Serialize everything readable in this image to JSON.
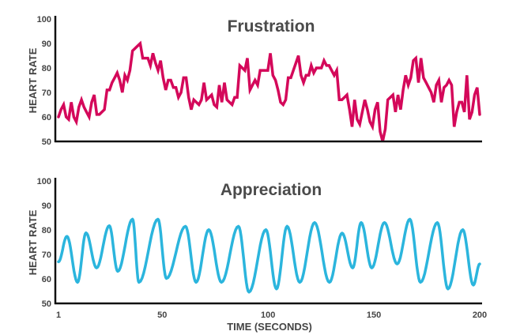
{
  "chart_data": [
    {
      "type": "line",
      "title": "Frustration",
      "ylabel": "HEART RATE",
      "xlabel": "",
      "ylim": [
        50,
        100
      ],
      "xlim": [
        1,
        200
      ],
      "yticks": [
        "50",
        "60",
        "70",
        "80",
        "90",
        "100"
      ],
      "color": "#d4085a",
      "sampling": "evenly spaced from 1 to 200",
      "values": [
        60,
        63,
        65,
        60,
        59,
        66,
        60,
        58,
        64,
        67,
        64,
        62,
        60,
        66,
        69,
        61,
        61,
        62,
        63,
        71,
        71,
        74,
        76,
        78,
        75,
        70,
        77,
        75,
        79,
        87,
        88,
        89,
        90,
        84,
        84,
        84,
        81,
        86,
        82,
        79,
        83,
        76,
        71,
        75,
        75,
        72,
        72,
        68,
        70,
        76,
        76,
        68,
        63,
        67,
        66,
        65,
        67,
        74,
        67,
        68,
        69,
        65,
        64,
        73,
        66,
        74,
        67,
        66,
        65,
        68,
        68,
        81,
        80,
        79,
        84,
        71,
        73,
        75,
        73,
        79,
        79,
        79,
        79,
        86,
        77,
        75,
        71,
        66,
        65,
        67,
        76,
        76,
        79,
        82,
        85,
        77,
        74,
        77,
        77,
        81,
        78,
        80,
        80,
        80,
        83,
        81,
        81,
        79,
        77,
        79,
        67,
        67,
        68,
        69,
        63,
        56,
        67,
        59,
        57,
        62,
        67,
        63,
        58,
        56,
        63,
        66,
        54,
        50,
        55,
        67,
        68,
        69,
        62,
        69,
        63,
        71,
        77,
        73,
        76,
        83,
        84,
        74,
        84,
        76,
        74,
        72,
        70,
        66,
        73,
        75,
        66,
        72,
        73,
        75,
        73,
        56,
        62,
        66,
        66,
        62,
        77,
        59,
        62,
        69,
        72,
        61
      ]
    },
    {
      "type": "line",
      "title": "Appreciation",
      "ylabel": "HEART RATE",
      "xlabel": "TIME (SECONDS)",
      "ylim": [
        50,
        100
      ],
      "xlim": [
        1,
        200
      ],
      "yticks": [
        "50",
        "60",
        "70",
        "80",
        "90",
        "100"
      ],
      "xticks": [
        "1",
        "50",
        "100",
        "150",
        "200"
      ],
      "color": "#2bb5dd",
      "extrema": [
        [
          1,
          67
        ],
        [
          5,
          77.4
        ],
        [
          10,
          58.6
        ],
        [
          14,
          78.8
        ],
        [
          19,
          64.5
        ],
        [
          25,
          81.7
        ],
        [
          29,
          63.1
        ],
        [
          36,
          84.4
        ],
        [
          39,
          58.6
        ],
        [
          48,
          84.4
        ],
        [
          52,
          60.2
        ],
        [
          61,
          81.5
        ],
        [
          66,
          58.6
        ],
        [
          72,
          80.1
        ],
        [
          78,
          58.6
        ],
        [
          86,
          81.5
        ],
        [
          91,
          54.6
        ],
        [
          99,
          80.1
        ],
        [
          104,
          55.9
        ],
        [
          109,
          81.5
        ],
        [
          115,
          58.6
        ],
        [
          122,
          83
        ],
        [
          129,
          58.6
        ],
        [
          135,
          78.7
        ],
        [
          140,
          64.5
        ],
        [
          144,
          83
        ],
        [
          149,
          64.5
        ],
        [
          155,
          83
        ],
        [
          161,
          66.1
        ],
        [
          167,
          84.4
        ],
        [
          172,
          58.6
        ],
        [
          180,
          83
        ],
        [
          185,
          55.9
        ],
        [
          192,
          80.1
        ],
        [
          197,
          57.5
        ],
        [
          200,
          66.1
        ]
      ]
    }
  ]
}
